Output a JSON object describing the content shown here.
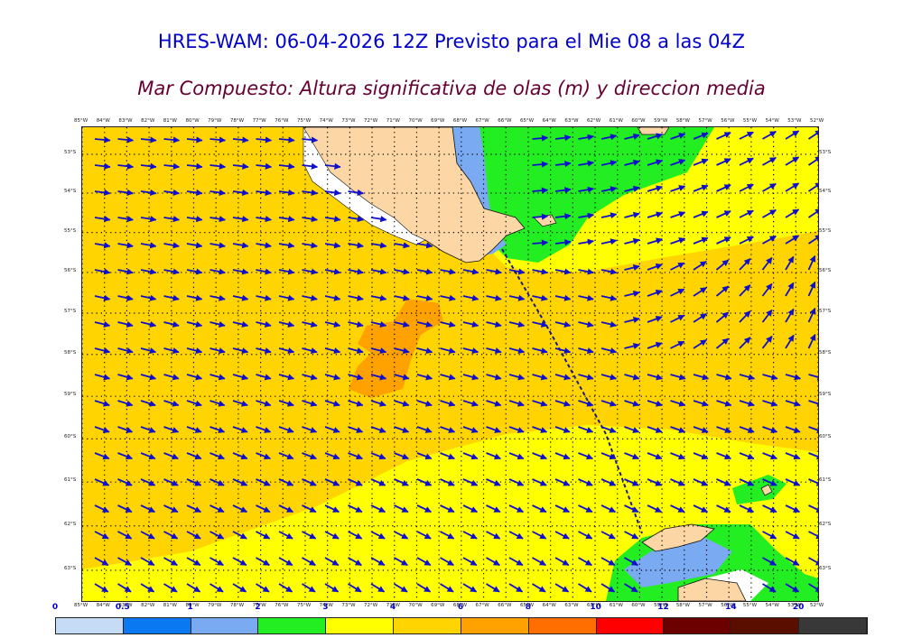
{
  "header": {
    "title": "HRES-WAM: 06-04-2026 12Z Previsto para el Mie 08 a las 04Z",
    "subtitle": "Mar Compuesto: Altura significativa de olas (m) y direccion media"
  },
  "map": {
    "lon_labels": [
      "85°W",
      "84°W",
      "83°W",
      "82°W",
      "81°W",
      "80°W",
      "79°W",
      "78°W",
      "77°W",
      "76°W",
      "75°W",
      "74°W",
      "73°W",
      "72°W",
      "71°W",
      "70°W",
      "69°W",
      "68°W",
      "67°W",
      "66°W",
      "65°W",
      "64°W",
      "63°W",
      "62°W",
      "61°W",
      "60°W",
      "59°W",
      "58°W",
      "57°W",
      "56°W",
      "55°W",
      "54°W",
      "53°W",
      "52°W"
    ],
    "lat_labels": [
      "53°S",
      "54°S",
      "55°S",
      "56°S",
      "57°S",
      "58°S",
      "59°S",
      "60°S",
      "61°S",
      "62°S",
      "63°S"
    ],
    "colors": {
      "land": "#fcd6a4",
      "coast": "#111111",
      "arrow": "#1010cc",
      "grid": "#000000",
      "route": "#1a1a99"
    }
  },
  "legend": {
    "labels": [
      "0",
      "0.5",
      "1",
      "2",
      "3",
      "4",
      "6",
      "8",
      "10",
      "12",
      "14",
      "20"
    ],
    "colors": [
      "#c6dcf6",
      "#0a78f0",
      "#79aaf2",
      "#22ee22",
      "#ffff00",
      "#ffd400",
      "#ffa200",
      "#ff6e00",
      "#ff0000",
      "#6c0000",
      "#5a0e00",
      "#383838"
    ]
  }
}
